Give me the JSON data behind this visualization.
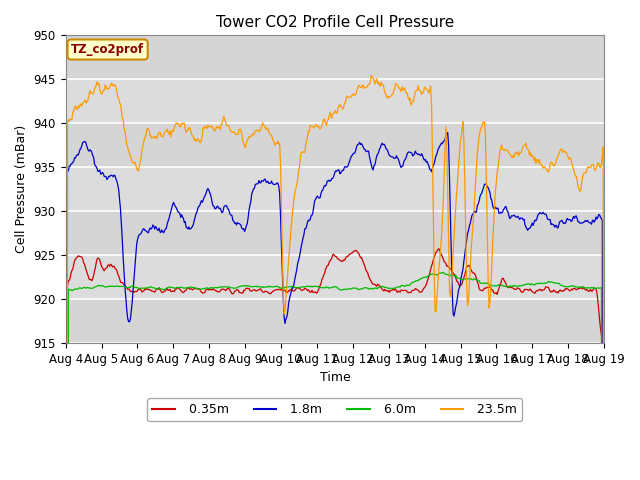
{
  "title": "Tower CO2 Profile Cell Pressure",
  "ylabel": "Cell Pressure (mBar)",
  "xlabel": "Time",
  "annotation": "TZ_co2prof",
  "ylim": [
    915,
    950
  ],
  "xlim": [
    0,
    15
  ],
  "xtick_labels": [
    "Aug 4",
    "Aug 5",
    "Aug 6",
    "Aug 7",
    "Aug 8",
    "Aug 9",
    "Aug 10",
    "Aug 11",
    "Aug 12",
    "Aug 13",
    "Aug 14",
    "Aug 15",
    "Aug 16",
    "Aug 17",
    "Aug 18",
    "Aug 19"
  ],
  "ytick_values": [
    915,
    920,
    925,
    930,
    935,
    940,
    945,
    950
  ],
  "colors": {
    "0.35m": "#cc0000",
    "1.8m": "#0000cc",
    "6.0m": "#00bb00",
    "23.5m": "#ff9900"
  },
  "legend_labels": [
    "0.35m",
    "1.8m",
    "6.0m",
    "23.5m"
  ],
  "bg_color": "#dcdcdc",
  "band_color": "#c8c8c8",
  "title_fontsize": 11,
  "label_fontsize": 9,
  "tick_fontsize": 8.5
}
